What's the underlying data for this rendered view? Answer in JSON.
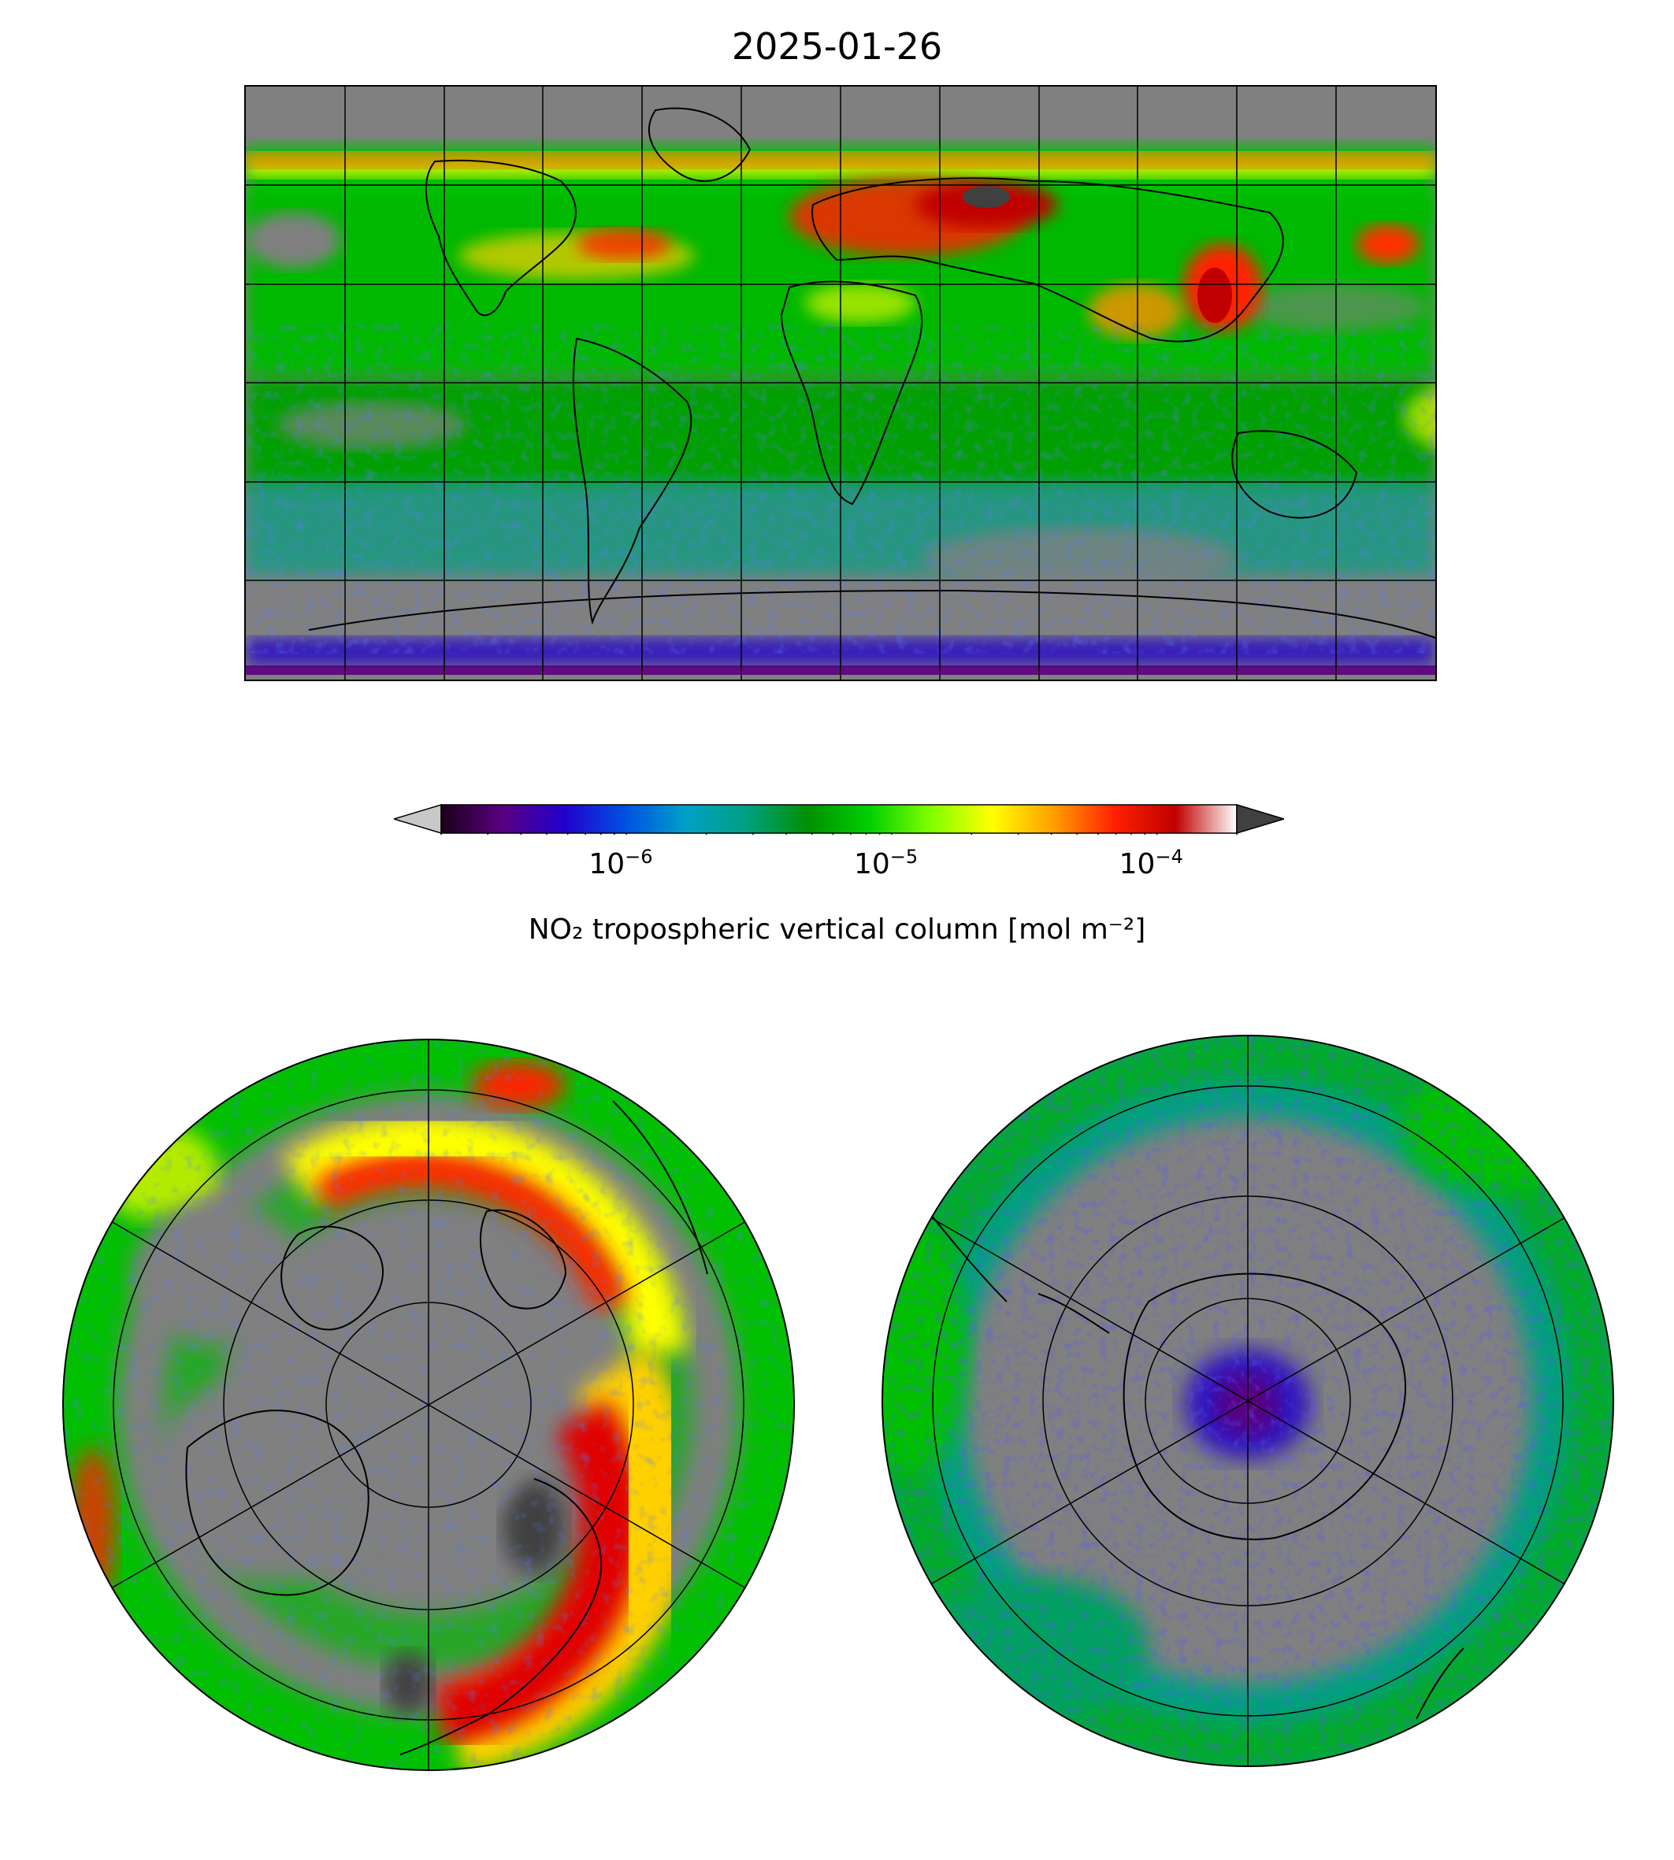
{
  "title": "2025-01-26",
  "colorbar": {
    "label": "NO₂ tropospheric vertical column [mol m⁻²]",
    "ticks": [
      {
        "base": "10",
        "exp": "−6",
        "value": 1e-06
      },
      {
        "base": "10",
        "exp": "−5",
        "value": 1e-05
      },
      {
        "base": "10",
        "exp": "−4",
        "value": 0.0001
      }
    ],
    "range": [
      2e-07,
      0.0002
    ],
    "scale": "log",
    "extend": "both",
    "colors": [
      "#1a001a",
      "#5a0080",
      "#2200cc",
      "#0050e0",
      "#00a0c8",
      "#00a080",
      "#009000",
      "#00d000",
      "#80ff00",
      "#ffff00",
      "#ffa000",
      "#ff2000",
      "#c00000",
      "#ffffff"
    ],
    "under_color": "#c8c8c8",
    "over_color": "#404040"
  },
  "panels": [
    {
      "name": "global",
      "projection": "plate-carree",
      "gridlines": true
    },
    {
      "name": "north-polar",
      "projection": "north-polar-stereographic",
      "gridlines": true
    },
    {
      "name": "south-polar",
      "projection": "south-polar-stereographic",
      "gridlines": true
    }
  ],
  "colors": {
    "no_data": "#808080",
    "coast": "#000000"
  }
}
